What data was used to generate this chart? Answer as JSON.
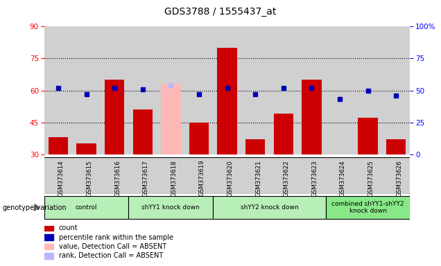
{
  "title": "GDS3788 / 1555437_at",
  "samples": [
    "GSM373614",
    "GSM373615",
    "GSM373616",
    "GSM373617",
    "GSM373618",
    "GSM373619",
    "GSM373620",
    "GSM373621",
    "GSM373622",
    "GSM373623",
    "GSM373624",
    "GSM373625",
    "GSM373626"
  ],
  "bar_values": [
    38,
    35,
    65,
    51,
    null,
    45,
    80,
    37,
    49,
    65,
    30,
    47,
    37
  ],
  "absent_bar_values": [
    null,
    null,
    null,
    null,
    63,
    null,
    null,
    null,
    null,
    null,
    null,
    null,
    null
  ],
  "blue_sq_values": [
    52,
    47,
    52,
    51,
    null,
    47,
    52,
    47,
    52,
    52,
    43,
    50,
    46
  ],
  "absent_rank_values": [
    null,
    null,
    null,
    null,
    54,
    null,
    null,
    null,
    null,
    null,
    null,
    null,
    null
  ],
  "groups": [
    {
      "label": "control",
      "indices": [
        0,
        1,
        2
      ],
      "color": "#b8eeb8"
    },
    {
      "label": "shYY1 knock down",
      "indices": [
        3,
        4,
        5
      ],
      "color": "#b8eeb8"
    },
    {
      "label": "shYY2 knock down",
      "indices": [
        6,
        7,
        8,
        9
      ],
      "color": "#b8eeb8"
    },
    {
      "label": "combined shYY1-shYY2\nknock down",
      "indices": [
        10,
        11,
        12
      ],
      "color": "#88e888"
    }
  ],
  "ylim_left": [
    30,
    90
  ],
  "ylim_right": [
    0,
    100
  ],
  "yticks_left": [
    30,
    45,
    60,
    75,
    90
  ],
  "yticks_right": [
    0,
    25,
    50,
    75,
    100
  ],
  "bar_color": "#cc0000",
  "absent_bar_color": "#ffb8b8",
  "blue_color": "#0000bb",
  "absent_rank_color": "#b8b8ff",
  "grid_values": [
    45,
    60,
    75
  ],
  "bg_color": "#d0d0d0",
  "legend_items": [
    {
      "color": "#cc0000",
      "label": "count"
    },
    {
      "color": "#0000bb",
      "label": "percentile rank within the sample"
    },
    {
      "color": "#ffb8b8",
      "label": "value, Detection Call = ABSENT"
    },
    {
      "color": "#b8b8ff",
      "label": "rank, Detection Call = ABSENT"
    }
  ]
}
